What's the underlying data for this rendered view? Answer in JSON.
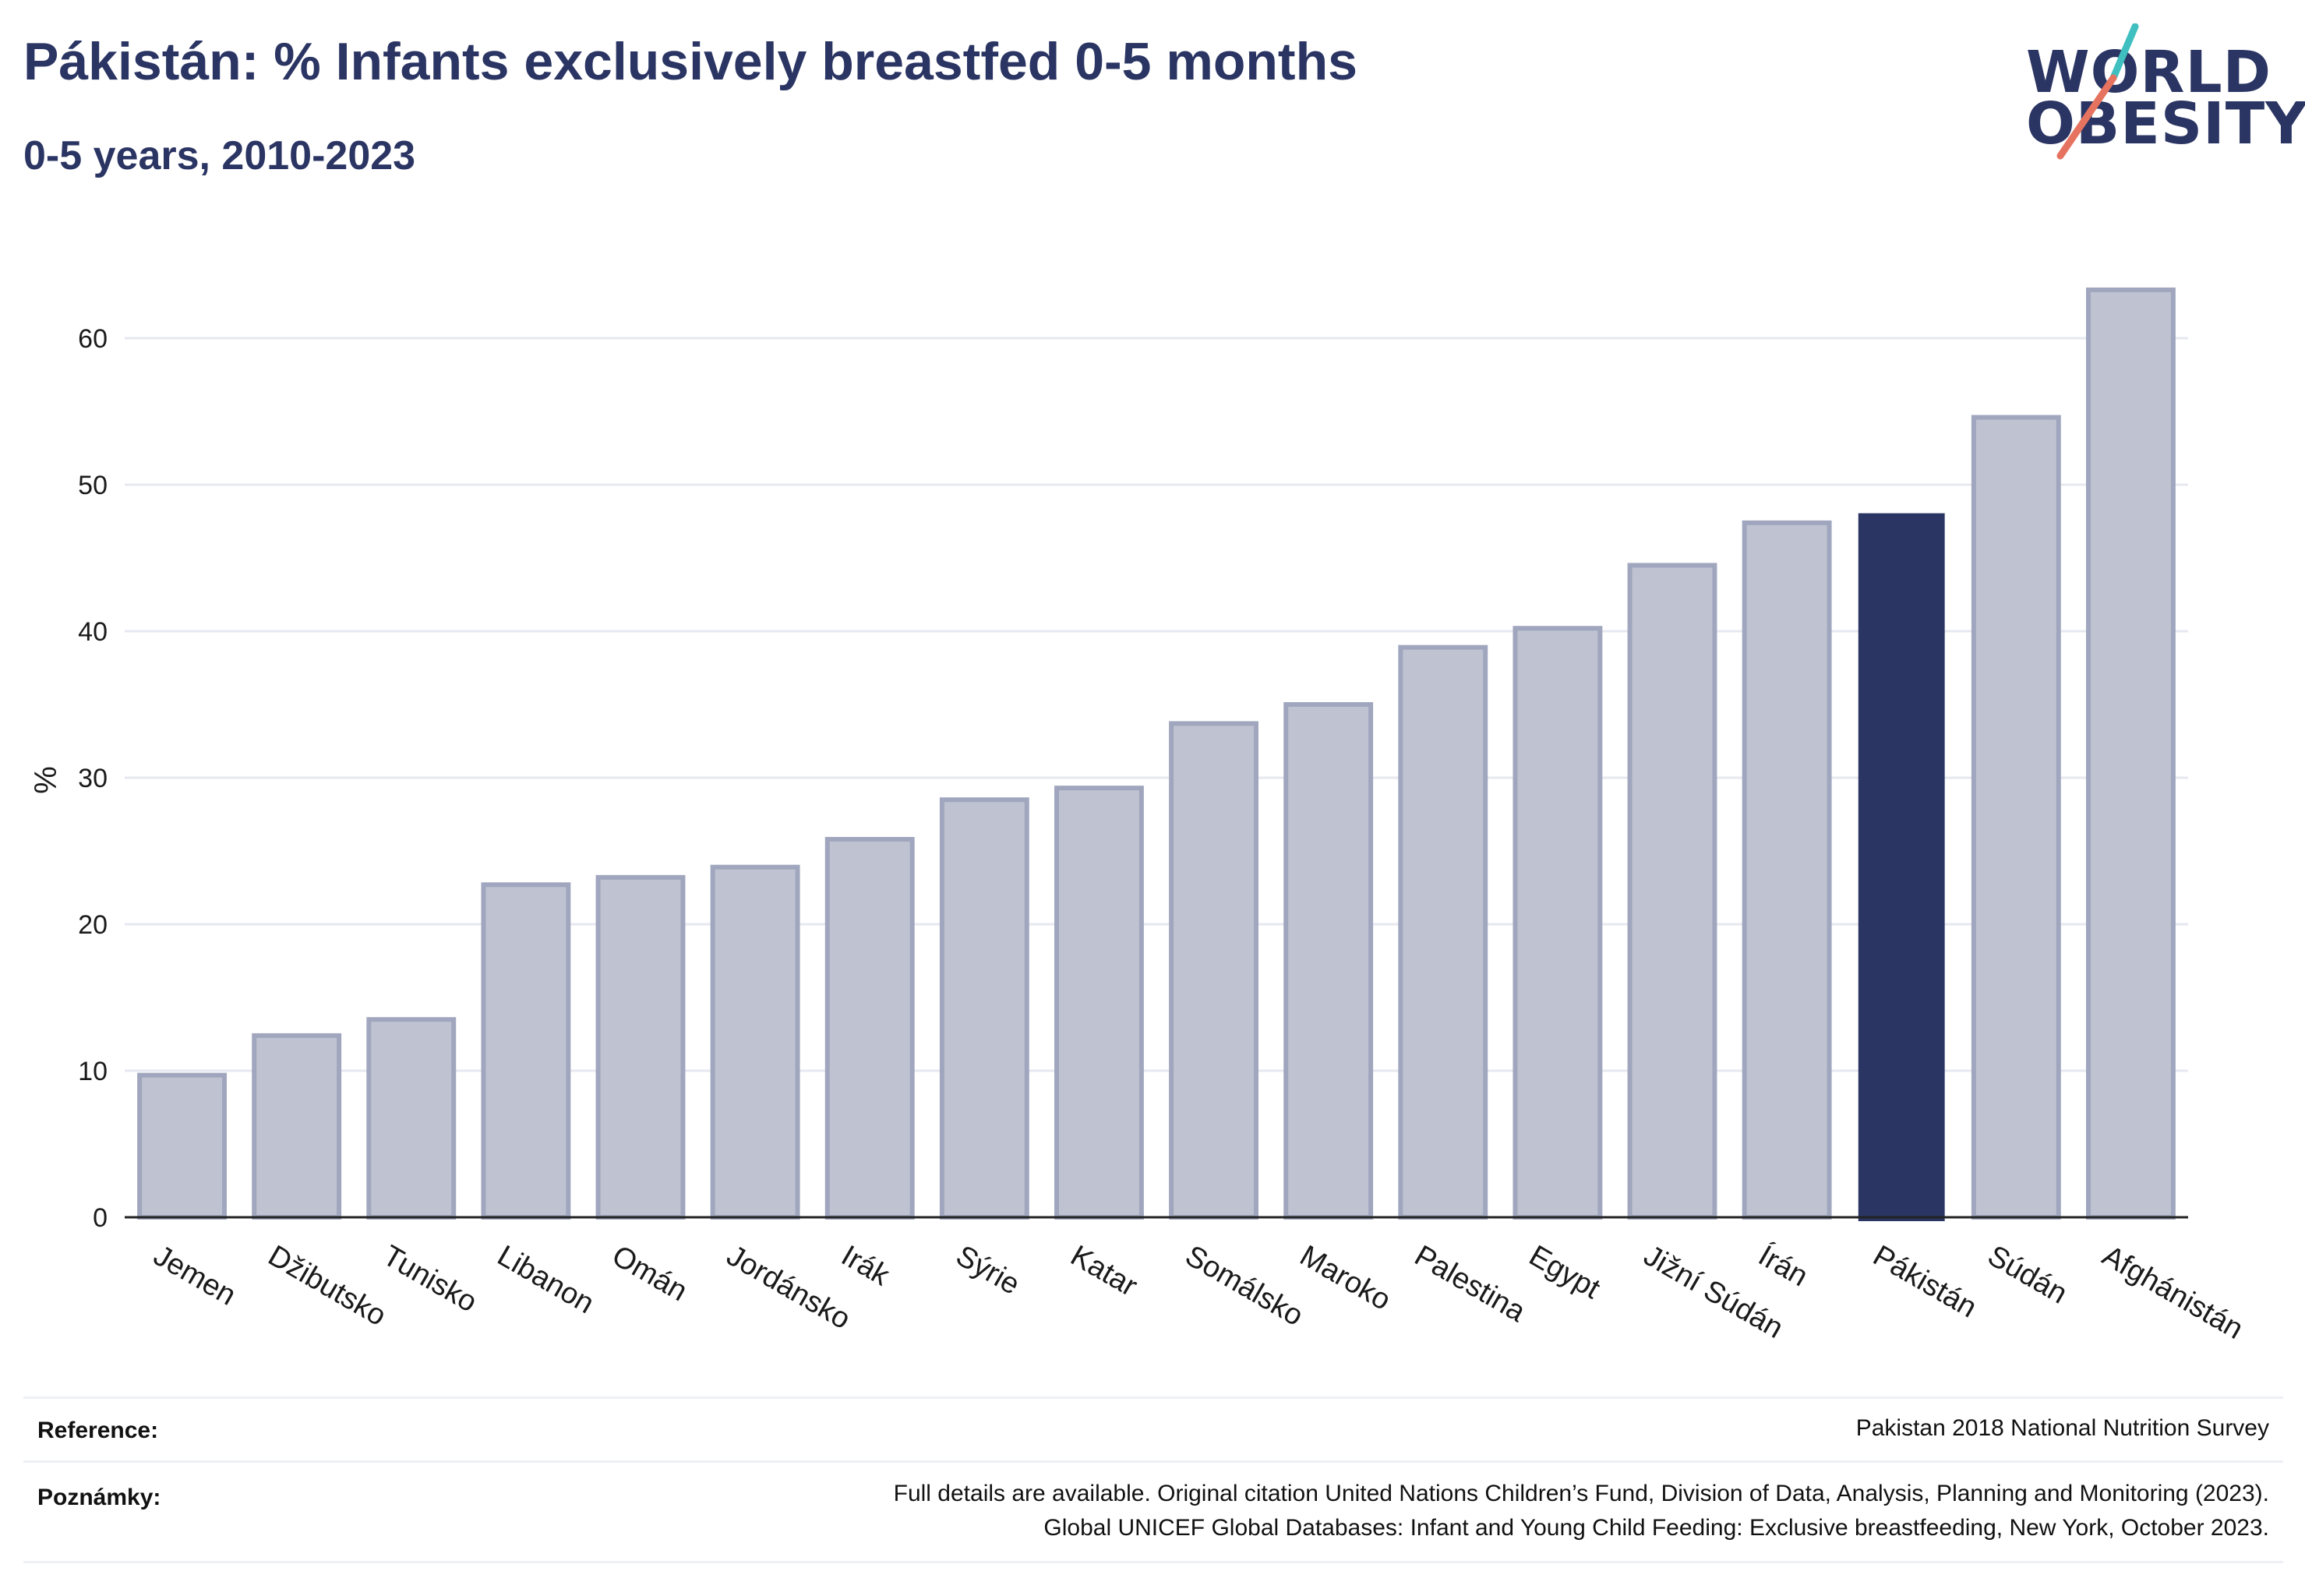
{
  "header": {
    "title": "Pákistán: % Infants exclusively breastfed 0-5 months",
    "subtitle": "0-5 years, 2010-2023"
  },
  "logo": {
    "line1": "WORLD",
    "line2": "OBESITY",
    "slash_color_top": "#3fbfbf",
    "slash_color_bottom": "#e5735f"
  },
  "colors": {
    "bar_default": "#bfc3d1",
    "bar_border": "#a0a6be",
    "bar_highlight": "#2b3563",
    "grid": "#e6e8ef",
    "axis": "#222222"
  },
  "chart_data": {
    "type": "bar",
    "title": "Pákistán: % Infants exclusively breastfed 0-5 months",
    "subtitle": "0-5 years, 2010-2023",
    "ylabel": "%",
    "xlabel": "",
    "ylim": [
      0,
      65
    ],
    "yticks": [
      0,
      10,
      20,
      30,
      40,
      50,
      60
    ],
    "grid": true,
    "highlight": "Pákistán",
    "categories": [
      "Jemen",
      "Džibutsko",
      "Tunisko",
      "Libanon",
      "Omán",
      "Jordánsko",
      "Irák",
      "Sýrie",
      "Katar",
      "Somálsko",
      "Maroko",
      "Palestina",
      "Egypt",
      "Jižní Súdán",
      "Írán",
      "Pákistán",
      "Súdán",
      "Afghánistán"
    ],
    "values": [
      9.7,
      12.4,
      13.5,
      22.7,
      23.2,
      23.9,
      25.8,
      28.5,
      29.3,
      33.7,
      35.0,
      38.9,
      40.2,
      44.5,
      47.4,
      48.0,
      54.6,
      63.3
    ]
  },
  "footer": {
    "reference_label": "Reference:",
    "reference_text": "Pakistan 2018 National Nutrition Survey",
    "notes_label": "Poznámky:",
    "notes_line1": "Full details are available. Original citation United Nations Children’s Fund, Division of Data, Analysis, Planning and Monitoring (2023).",
    "notes_line2": "Global UNICEF Global Databases: Infant and Young Child Feeding: Exclusive breastfeeding, New York, October 2023."
  }
}
